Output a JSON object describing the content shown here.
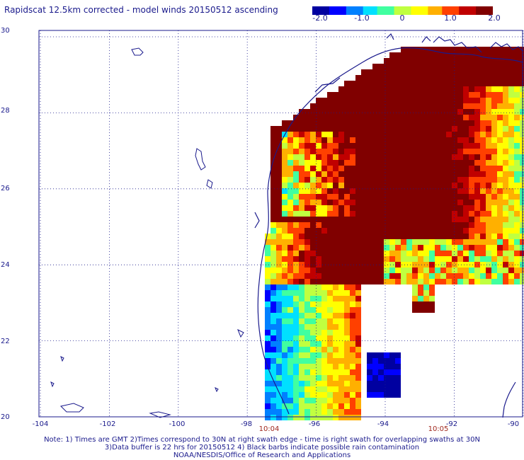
{
  "title": "Rapidscat 12.5km corrected - model winds 20150512 ascending",
  "colorbar": {
    "ticks": [
      "-2.0",
      "-1.0",
      "0",
      "1.0",
      "2.0"
    ],
    "tick_values": [
      -2.0,
      -1.0,
      0,
      1.0,
      2.0
    ],
    "range": [
      -2.0,
      2.0
    ],
    "colors": [
      "#0000a0",
      "#0000ff",
      "#0080ff",
      "#00e0ff",
      "#40ffa0",
      "#c0ff40",
      "#ffff00",
      "#ffb000",
      "#ff4000",
      "#c00000",
      "#800000"
    ]
  },
  "map": {
    "lat_labels": [
      "30",
      "28",
      "26",
      "24",
      "22",
      "20"
    ],
    "lat_values": [
      30,
      28,
      26,
      24,
      22,
      20
    ],
    "lon_labels": [
      "-104",
      "-102",
      "-100",
      "-98",
      "-96",
      "-94",
      "-92",
      "-90"
    ],
    "lon_values": [
      -104,
      -102,
      -100,
      -98,
      -96,
      -94,
      -92,
      -90
    ],
    "grid": "dotted",
    "coastline_color": "#1a1a8c"
  },
  "times": [
    "10:04",
    "10:05"
  ],
  "notes": [
    "Note: 1) Times are GMT 2)Times correspond to 30N at right swath edge - time is right swath for overlapping swaths at 30N",
    "3)Data buffer is 22 hrs for 20150512 4) Black barbs indicate possible rain contamination",
    "NOAA/NESDIS/Office of Research and Applications"
  ]
}
